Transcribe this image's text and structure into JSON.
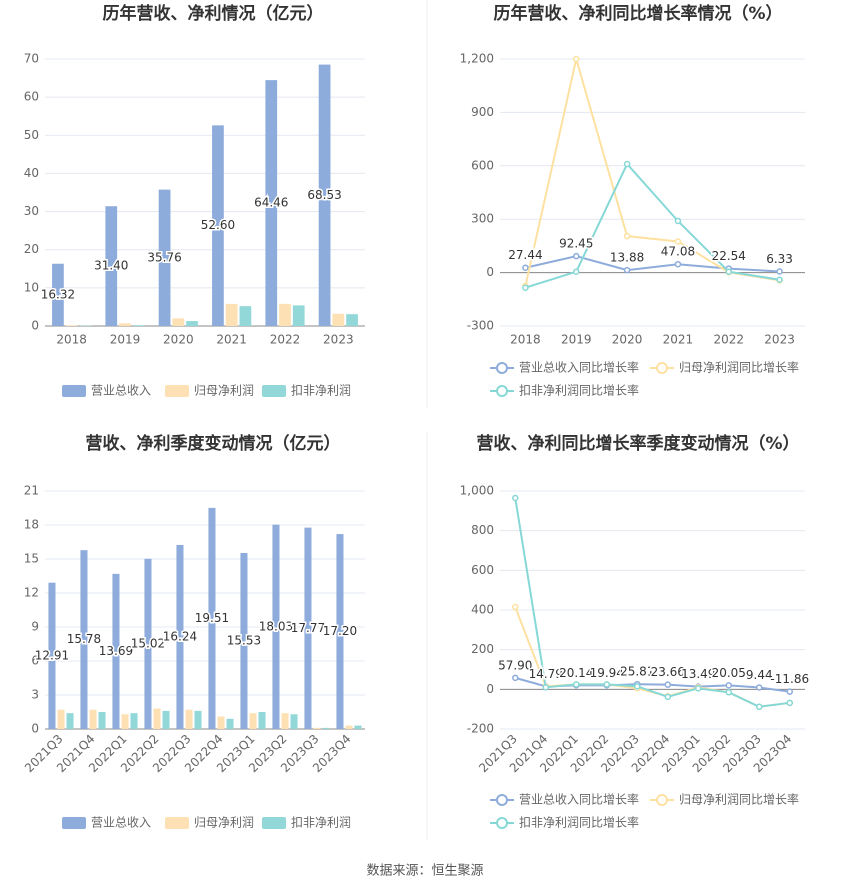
{
  "chart_data": [
    {
      "type": "bar",
      "title": "历年营收、净利情况（亿元）",
      "categories": [
        "2018",
        "2019",
        "2020",
        "2021",
        "2022",
        "2023"
      ],
      "series": [
        {
          "name": "营业总收入",
          "color": "#8eacdb",
          "values": [
            16.32,
            31.4,
            35.76,
            52.6,
            64.46,
            68.53
          ],
          "value_labels": [
            "16.32",
            "31.40",
            "35.76",
            "52.60",
            "64.46",
            "68.53"
          ]
        },
        {
          "name": "归母净利润",
          "color": "#fde1b4",
          "values": [
            0.2,
            0.7,
            2.0,
            5.8,
            5.8,
            3.2
          ]
        },
        {
          "name": "扣非净利润",
          "color": "#93d8d9",
          "values": [
            0.1,
            0.2,
            1.3,
            5.2,
            5.4,
            3.1
          ]
        }
      ],
      "ylim": [
        0,
        70
      ],
      "yticks": [
        0,
        10,
        20,
        30,
        40,
        50,
        60,
        70
      ],
      "grid": true
    },
    {
      "type": "line",
      "title": "历年营收、净利同比增长率情况（%）",
      "categories": [
        "2018",
        "2019",
        "2020",
        "2021",
        "2022",
        "2023"
      ],
      "series": [
        {
          "name": "营业总收入同比增长率",
          "color": "#8eacdb",
          "values": [
            27.44,
            92.45,
            13.88,
            47.08,
            22.54,
            6.33
          ],
          "data_labels": true
        },
        {
          "name": "归母净利润同比增长率",
          "color": "#fde1a0",
          "values": [
            -75,
            1200,
            205,
            175,
            2,
            -44
          ]
        },
        {
          "name": "扣非净利润同比增长率",
          "color": "#86d8d6",
          "values": [
            -85,
            5,
            610,
            290,
            5,
            -40
          ]
        }
      ],
      "ylim": [
        -300,
        1200
      ],
      "yticks": [
        -300,
        0,
        300,
        600,
        900,
        {
          "value": 1200,
          "label": "1,200"
        }
      ],
      "grid": true
    },
    {
      "type": "bar",
      "title": "营收、净利季度变动情况（亿元）",
      "categories": [
        "2021Q3",
        "2021Q4",
        "2022Q1",
        "2022Q2",
        "2022Q3",
        "2022Q4",
        "2023Q1",
        "2023Q2",
        "2023Q3",
        "2023Q4"
      ],
      "series": [
        {
          "name": "营业总收入",
          "color": "#8eacdb",
          "values": [
            12.91,
            15.78,
            13.69,
            15.02,
            16.24,
            19.51,
            15.53,
            18.03,
            17.77,
            17.2
          ],
          "value_labels": [
            "12.91",
            "15.78",
            "13.69",
            "15.02",
            "16.24",
            "19.51",
            "15.53",
            "18.03",
            "17.77",
            "17.20"
          ]
        },
        {
          "name": "归母净利润",
          "color": "#fde1b4",
          "values": [
            1.7,
            1.7,
            1.3,
            1.8,
            1.7,
            1.1,
            1.4,
            1.4,
            0.1,
            0.3
          ]
        },
        {
          "name": "扣非净利润",
          "color": "#93d8d9",
          "values": [
            1.4,
            1.5,
            1.4,
            1.6,
            1.6,
            0.9,
            1.5,
            1.3,
            0.1,
            0.3
          ]
        }
      ],
      "ylim": [
        0,
        21
      ],
      "yticks": [
        0,
        3,
        6,
        9,
        12,
        15,
        18,
        21
      ],
      "grid": true
    },
    {
      "type": "line",
      "title": "营收、净利同比增长率季度变动情况（%）",
      "categories": [
        "2021Q3",
        "2021Q4",
        "2022Q1",
        "2022Q2",
        "2022Q3",
        "2022Q4",
        "2023Q1",
        "2023Q2",
        "2023Q3",
        "2023Q4"
      ],
      "series": [
        {
          "name": "营业总收入同比增长率",
          "color": "#8eacdb",
          "values": [
            57.9,
            14.79,
            20.14,
            19.94,
            25.81,
            23.66,
            13.49,
            20.05,
            9.44,
            -11.86
          ],
          "value_labels": [
            "57.90",
            "14.79",
            "20.14",
            "19.94",
            "25.81",
            "23.66",
            "13.49",
            "20.05",
            "9.44",
            "-11.86"
          ]
        },
        {
          "name": "归母净利润同比增长率",
          "color": "#fde1a0",
          "values": [
            415,
            15,
            25,
            25,
            5,
            -35,
            10,
            -15,
            -88,
            -68
          ]
        },
        {
          "name": "扣非净利润同比增长率",
          "color": "#86d8d6",
          "values": [
            965,
            10,
            25,
            25,
            15,
            -38,
            5,
            -15,
            -88,
            -68
          ]
        }
      ],
      "ylim": [
        -200,
        1000
      ],
      "yticks": [
        -200,
        0,
        200,
        400,
        600,
        800,
        {
          "value": 1000,
          "label": "1,000"
        }
      ],
      "grid": true
    }
  ],
  "source": "数据来源：恒生聚源"
}
